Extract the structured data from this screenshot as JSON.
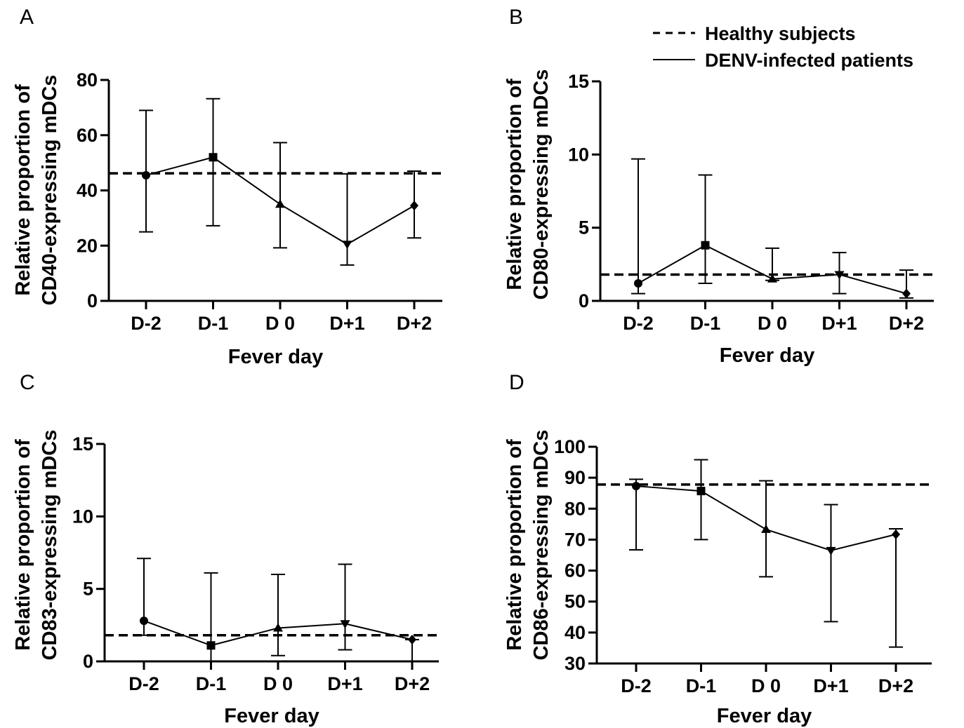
{
  "legend": {
    "healthy_label": "Healthy subjects",
    "patients_label": "DENV-infected patients"
  },
  "chart_data": [
    {
      "panel": "A",
      "type": "line",
      "categories": [
        "D-2",
        "D-1",
        "D 0",
        "D+1",
        "D+2"
      ],
      "xlabel": "Fever day",
      "ylabel_line1": "Relative proportion of",
      "ylabel_line2": "CD40-expressing mDCs",
      "ylim": [
        0,
        80
      ],
      "yticks": [
        0,
        20,
        40,
        60,
        80
      ],
      "healthy_value": 46.2,
      "series": [
        {
          "name": "DENV-infected patients",
          "markers": [
            "circle",
            "square",
            "triangle-up",
            "triangle-down",
            "diamond"
          ],
          "values": [
            45.5,
            52.0,
            35.0,
            20.5,
            34.5
          ],
          "err_low": [
            25.0,
            27.2,
            19.2,
            13.0,
            22.8
          ],
          "err_high": [
            69.0,
            73.2,
            57.3,
            46.0,
            47.0
          ]
        }
      ]
    },
    {
      "panel": "B",
      "type": "line",
      "categories": [
        "D-2",
        "D-1",
        "D 0",
        "D+1",
        "D+2"
      ],
      "xlabel": "Fever day",
      "ylabel_line1": "Relative proportion of",
      "ylabel_line2": "CD80-expressing mDCs",
      "ylim": [
        0,
        15
      ],
      "yticks": [
        0,
        5,
        10,
        15
      ],
      "healthy_value": 1.8,
      "series": [
        {
          "name": "DENV-infected patients",
          "markers": [
            "circle",
            "square",
            "triangle-up",
            "triangle-down",
            "diamond"
          ],
          "values": [
            1.2,
            3.8,
            1.5,
            1.8,
            0.5
          ],
          "err_low": [
            0.5,
            1.2,
            1.4,
            0.5,
            0.2
          ],
          "err_high": [
            9.7,
            8.6,
            3.6,
            3.3,
            2.1
          ]
        }
      ]
    },
    {
      "panel": "C",
      "type": "line",
      "categories": [
        "D-2",
        "D-1",
        "D 0",
        "D+1",
        "D+2"
      ],
      "xlabel": "Fever day",
      "ylabel_line1": "Relative proportion of",
      "ylabel_line2": "CD83-expressing mDCs",
      "ylim": [
        0,
        15
      ],
      "yticks": [
        0,
        5,
        10,
        15
      ],
      "healthy_value": 1.8,
      "series": [
        {
          "name": "DENV-infected patients",
          "markers": [
            "circle",
            "square",
            "triangle-up",
            "triangle-down",
            "diamond"
          ],
          "values": [
            2.8,
            1.1,
            2.3,
            2.6,
            1.5
          ],
          "err_low": [
            1.8,
            0.0,
            0.4,
            0.8,
            0.0
          ],
          "err_high": [
            7.1,
            6.1,
            6.0,
            6.7,
            1.5
          ]
        }
      ]
    },
    {
      "panel": "D",
      "type": "line",
      "categories": [
        "D-2",
        "D-1",
        "D 0",
        "D+1",
        "D+2"
      ],
      "xlabel": "Fever day",
      "ylabel_line1": "Relative proportion of",
      "ylabel_line2": "CD86-expressing mDCs",
      "ylim": [
        30,
        100
      ],
      "yticks": [
        30,
        40,
        50,
        60,
        70,
        80,
        90,
        100
      ],
      "healthy_value": 87.8,
      "series": [
        {
          "name": "DENV-infected patients",
          "markers": [
            "circle",
            "square",
            "triangle-up",
            "triangle-down",
            "diamond"
          ],
          "values": [
            87.3,
            85.7,
            73.3,
            66.5,
            71.7
          ],
          "err_low": [
            66.7,
            70.0,
            58.0,
            43.5,
            35.3
          ],
          "err_high": [
            89.5,
            95.8,
            89.0,
            81.3,
            73.5
          ]
        }
      ]
    }
  ]
}
